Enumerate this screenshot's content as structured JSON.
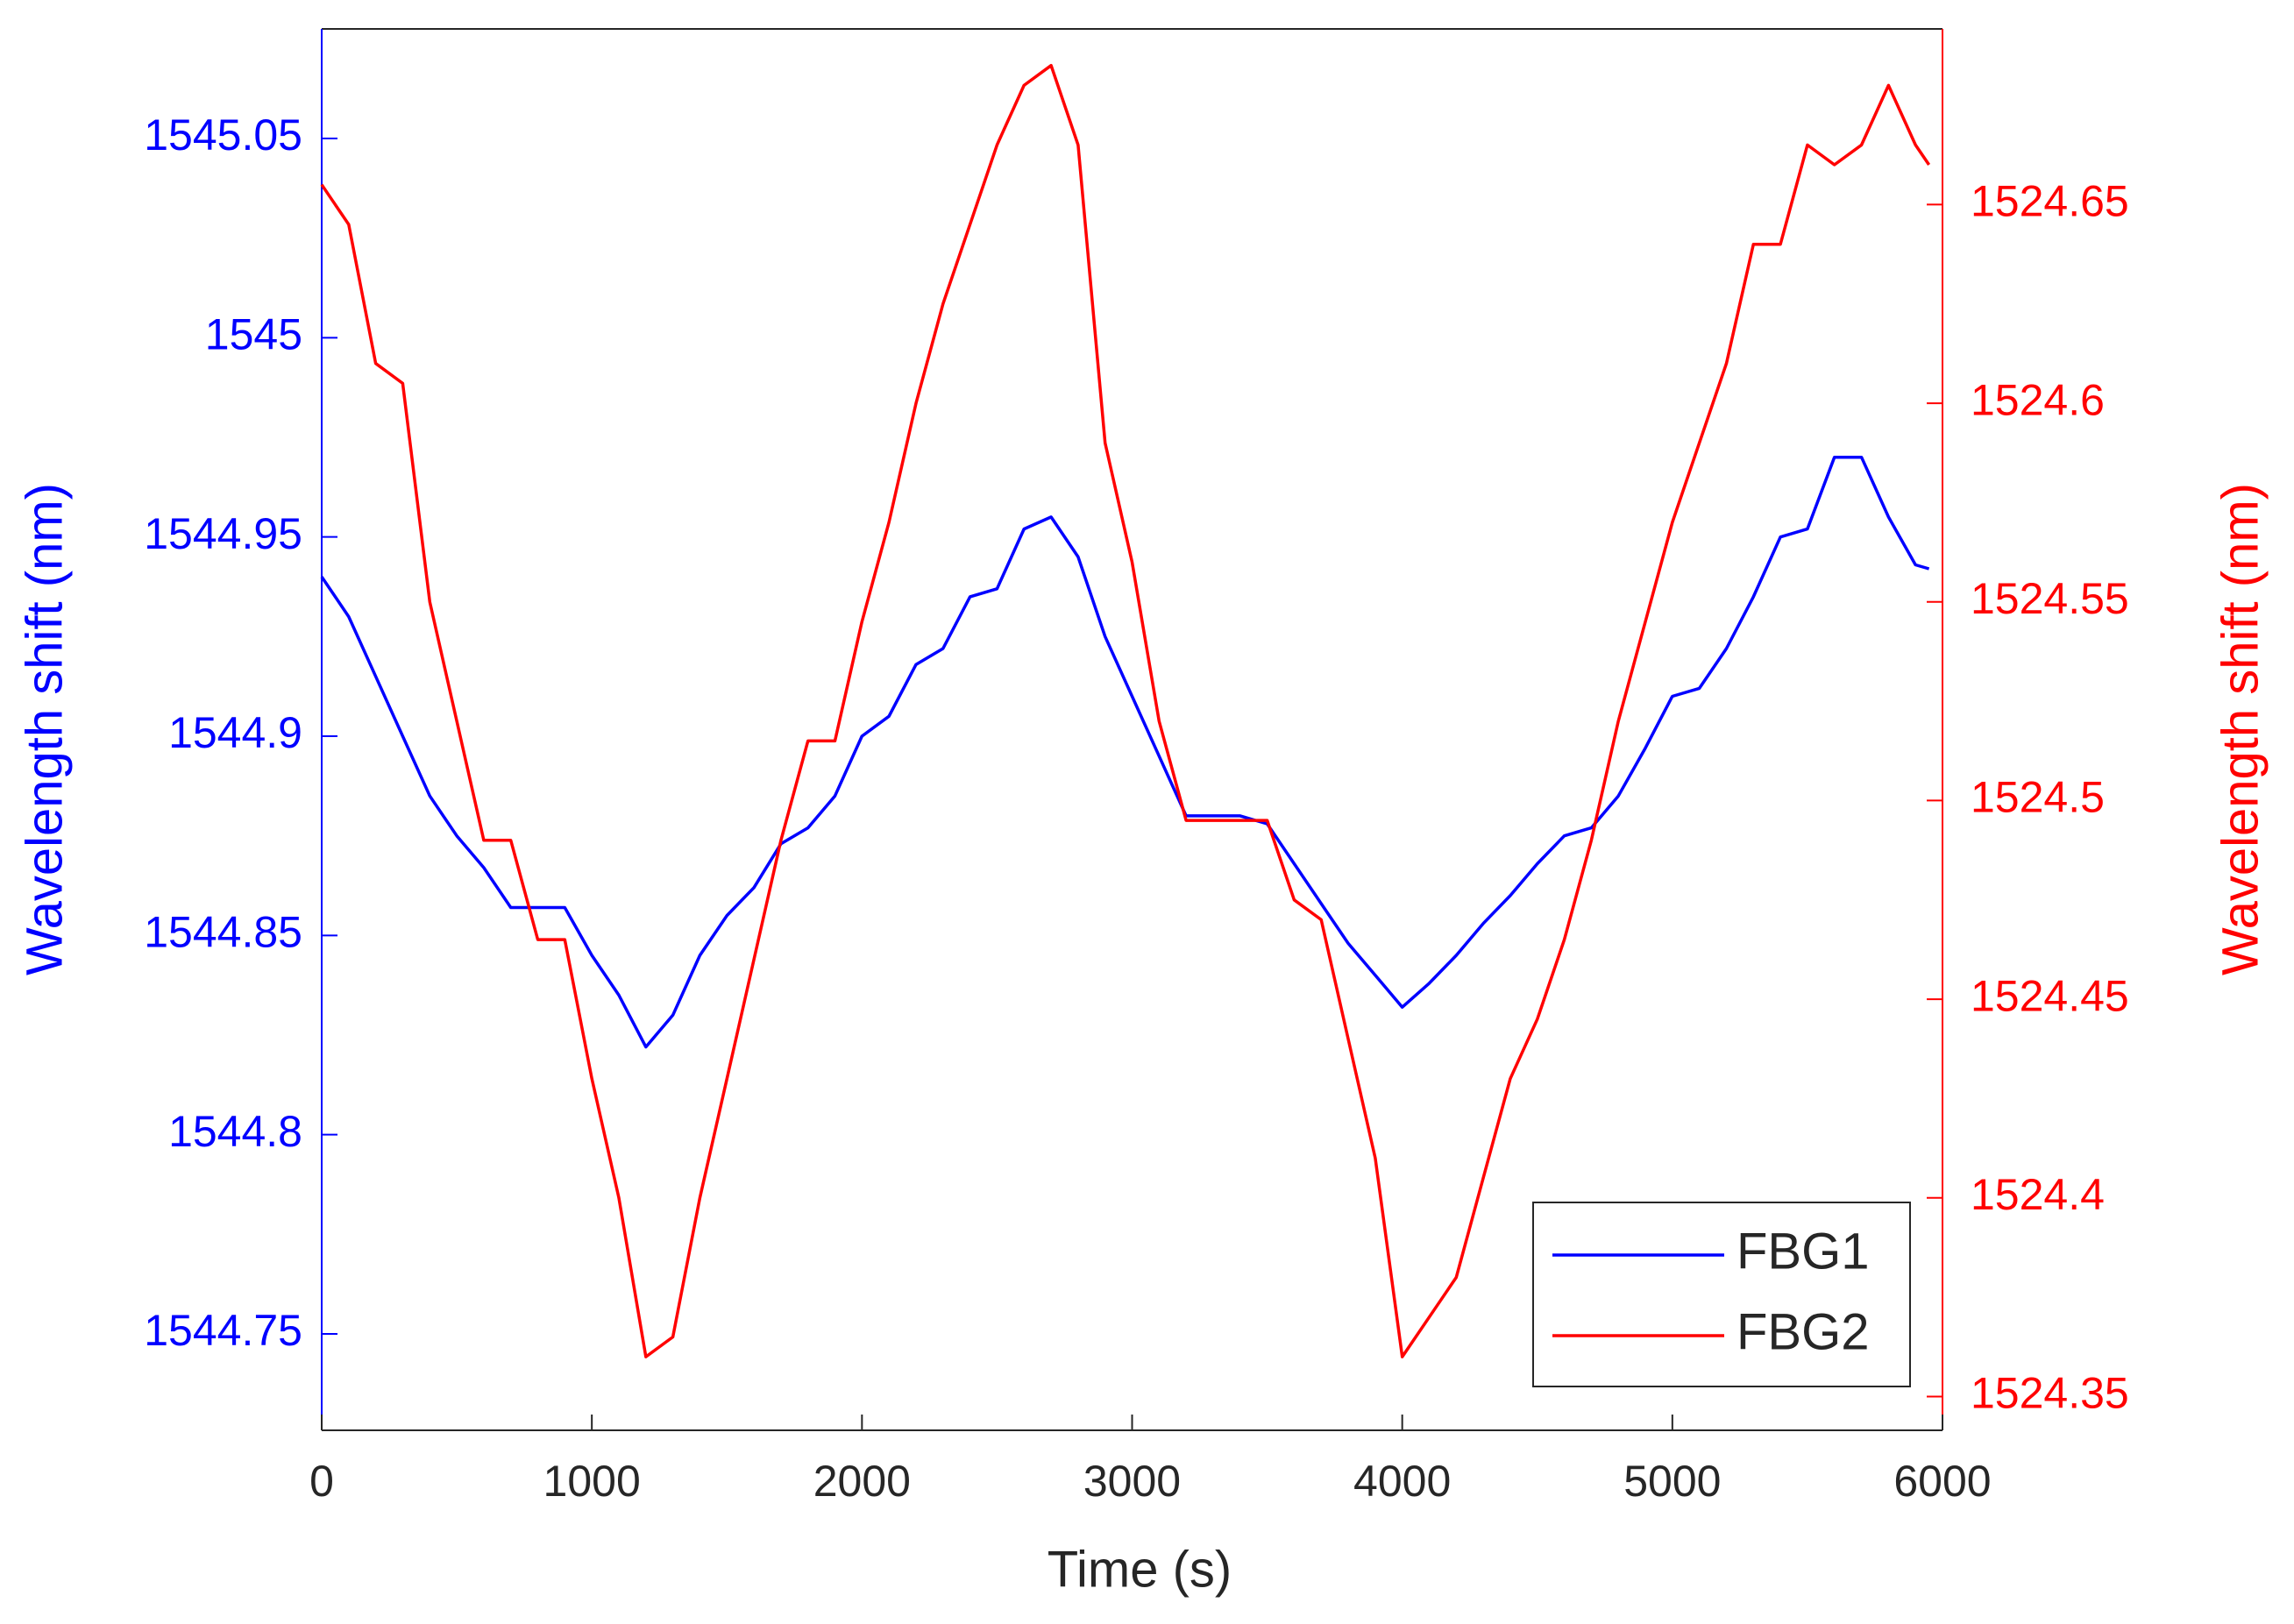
{
  "chart_data": {
    "type": "line",
    "xlabel": "Time (s)",
    "ylabel": "Wavelength shift (nm)",
    "y2label": "Wavelength shift (nm)",
    "x": [
      0,
      100,
      200,
      300,
      400,
      500,
      600,
      700,
      800,
      900,
      1000,
      1100,
      1200,
      1300,
      1400,
      1500,
      1600,
      1700,
      1800,
      1900,
      2000,
      2100,
      2200,
      2300,
      2400,
      2500,
      2600,
      2700,
      2800,
      2900,
      3000,
      3100,
      3200,
      3300,
      3400,
      3500,
      3600,
      3700,
      3800,
      3900,
      4000,
      4100,
      4200,
      4300,
      4400,
      4500,
      4600,
      4700,
      4800,
      4900,
      5000,
      5100,
      5200,
      5300,
      5400,
      5500,
      5600,
      5700,
      5800,
      5900,
      5950
    ],
    "series": [
      {
        "name": "FBG1",
        "color": "#0000ff",
        "axis": "y",
        "values": [
          1544.94,
          1544.93,
          1544.915,
          1544.9,
          1544.885,
          1544.875,
          1544.867,
          1544.857,
          1544.857,
          1544.857,
          1544.845,
          1544.835,
          1544.822,
          1544.83,
          1544.845,
          1544.855,
          1544.862,
          1544.873,
          1544.877,
          1544.885,
          1544.9,
          1544.905,
          1544.918,
          1544.922,
          1544.935,
          1544.937,
          1544.952,
          1544.955,
          1544.945,
          1544.925,
          1544.91,
          1544.895,
          1544.88,
          1544.88,
          1544.88,
          1544.878,
          1544.868,
          1544.858,
          1544.848,
          1544.84,
          1544.832,
          1544.838,
          1544.845,
          1544.853,
          1544.86,
          1544.868,
          1544.875,
          1544.877,
          1544.885,
          1544.897,
          1544.91,
          1544.912,
          1544.922,
          1544.935,
          1544.95,
          1544.952,
          1544.97,
          1544.97,
          1544.955,
          1544.943,
          1544.942
        ]
      },
      {
        "name": "FBG2",
        "color": "#ff0000",
        "axis": "y2",
        "values": [
          1524.655,
          1524.645,
          1524.61,
          1524.605,
          1524.55,
          1524.52,
          1524.49,
          1524.49,
          1524.465,
          1524.465,
          1524.43,
          1524.4,
          1524.36,
          1524.365,
          1524.4,
          1524.43,
          1524.46,
          1524.49,
          1524.515,
          1524.515,
          1524.545,
          1524.57,
          1524.6,
          1524.625,
          1524.645,
          1524.665,
          1524.68,
          1524.685,
          1524.665,
          1524.59,
          1524.56,
          1524.52,
          1524.495,
          1524.495,
          1524.495,
          1524.495,
          1524.475,
          1524.47,
          1524.44,
          1524.41,
          1524.36,
          1524.37,
          1524.38,
          1524.405,
          1524.43,
          1524.445,
          1524.465,
          1524.49,
          1524.52,
          1524.545,
          1524.57,
          1524.59,
          1524.61,
          1524.64,
          1524.64,
          1524.665,
          1524.66,
          1524.665,
          1524.68,
          1524.665,
          1524.66
        ]
      }
    ],
    "xlim": [
      0,
      6000
    ],
    "xticks": [
      0,
      1000,
      2000,
      3000,
      4000,
      5000,
      6000
    ],
    "ylim": [
      1544.7258,
      1545.0775
    ],
    "yticks": [
      1544.75,
      1544.8,
      1544.85,
      1544.9,
      1544.95,
      1545,
      1545.05
    ],
    "y2lim": [
      1524.3415,
      1524.6942
    ],
    "y2ticks": [
      1524.35,
      1524.4,
      1524.45,
      1524.5,
      1524.55,
      1524.6,
      1524.65
    ],
    "legend": "lower right"
  }
}
